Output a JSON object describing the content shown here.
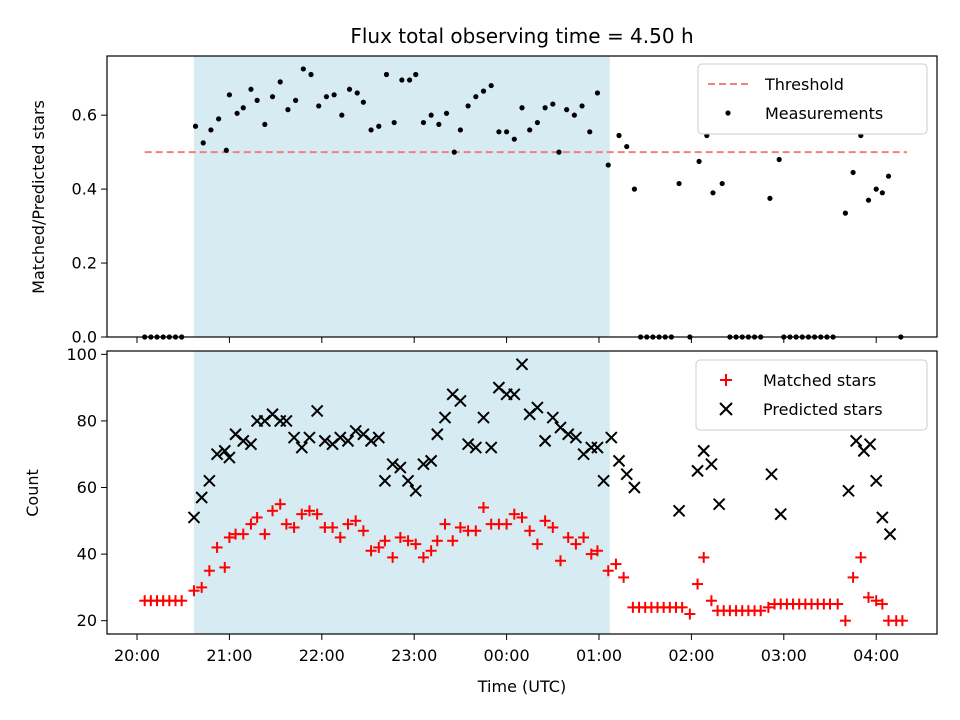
{
  "chart_data": {
    "type": "scatter",
    "title": "Flux total observing time = 4.50 h",
    "xlabel": "Time (UTC)",
    "x_ticks": [
      "20:00",
      "21:00",
      "22:00",
      "23:00",
      "00:00",
      "01:00",
      "02:00",
      "03:00",
      "04:00"
    ],
    "shaded_interval": {
      "start": "20:37",
      "end": "01:07",
      "color": "#add8e6"
    },
    "top_panel": {
      "ylabel": "Matched/Predicted stars",
      "ylim": [
        0,
        0.76
      ],
      "y_ticks": [
        "0.0",
        "0.2",
        "0.4",
        "0.6"
      ],
      "threshold": {
        "name": "Threshold",
        "value": 0.5,
        "color": "#f08080",
        "x_start": "20:05",
        "x_end": "04:20"
      },
      "measurements_name": "Measurements",
      "measurements": [
        [
          "20:05",
          0
        ],
        [
          "20:09",
          0
        ],
        [
          "20:13",
          0
        ],
        [
          "20:17",
          0
        ],
        [
          "20:21",
          0
        ],
        [
          "20:25",
          0
        ],
        [
          "20:29",
          0
        ],
        [
          "20:38",
          0.57
        ],
        [
          "20:43",
          0.525
        ],
        [
          "20:48",
          0.56
        ],
        [
          "20:53",
          0.59
        ],
        [
          "20:58",
          0.505
        ],
        [
          "21:00",
          0.655
        ],
        [
          "21:05",
          0.605
        ],
        [
          "21:09",
          0.62
        ],
        [
          "21:14",
          0.67
        ],
        [
          "21:18",
          0.64
        ],
        [
          "21:23",
          0.575
        ],
        [
          "21:28",
          0.65
        ],
        [
          "21:33",
          0.69
        ],
        [
          "21:38",
          0.615
        ],
        [
          "21:43",
          0.64
        ],
        [
          "21:48",
          0.725
        ],
        [
          "21:53",
          0.71
        ],
        [
          "21:58",
          0.625
        ],
        [
          "22:03",
          0.65
        ],
        [
          "22:08",
          0.655
        ],
        [
          "22:13",
          0.6
        ],
        [
          "22:18",
          0.67
        ],
        [
          "22:23",
          0.66
        ],
        [
          "22:27",
          0.635
        ],
        [
          "22:32",
          0.56
        ],
        [
          "22:37",
          0.57
        ],
        [
          "22:42",
          0.71
        ],
        [
          "22:47",
          0.58
        ],
        [
          "22:52",
          0.695
        ],
        [
          "22:57",
          0.695
        ],
        [
          "23:01",
          0.71
        ],
        [
          "23:06",
          0.58
        ],
        [
          "23:11",
          0.6
        ],
        [
          "23:16",
          0.575
        ],
        [
          "23:21",
          0.605
        ],
        [
          "23:26",
          0.5
        ],
        [
          "23:30",
          0.56
        ],
        [
          "23:35",
          0.625
        ],
        [
          "23:40",
          0.65
        ],
        [
          "23:45",
          0.665
        ],
        [
          "23:50",
          0.68
        ],
        [
          "23:55",
          0.555
        ],
        [
          "00:00",
          0.555
        ],
        [
          "00:05",
          0.535
        ],
        [
          "00:10",
          0.62
        ],
        [
          "00:15",
          0.56
        ],
        [
          "00:20",
          0.58
        ],
        [
          "00:25",
          0.62
        ],
        [
          "00:30",
          0.63
        ],
        [
          "00:34",
          0.5
        ],
        [
          "00:39",
          0.615
        ],
        [
          "00:44",
          0.6
        ],
        [
          "00:49",
          0.625
        ],
        [
          "00:54",
          0.555
        ],
        [
          "00:59",
          0.66
        ],
        [
          "01:06",
          0.465
        ],
        [
          "01:13",
          0.545
        ],
        [
          "01:18",
          0.515
        ],
        [
          "01:23",
          0.4
        ],
        [
          "01:27",
          0
        ],
        [
          "01:31",
          0
        ],
        [
          "01:35",
          0
        ],
        [
          "01:39",
          0
        ],
        [
          "01:43",
          0
        ],
        [
          "01:47",
          0
        ],
        [
          "01:52",
          0.415
        ],
        [
          "01:59",
          0
        ],
        [
          "02:05",
          0.475
        ],
        [
          "02:10",
          0.545
        ],
        [
          "02:14",
          0.39
        ],
        [
          "02:20",
          0.415
        ],
        [
          "02:25",
          0
        ],
        [
          "02:29",
          0
        ],
        [
          "02:33",
          0
        ],
        [
          "02:37",
          0
        ],
        [
          "02:41",
          0
        ],
        [
          "02:45",
          0
        ],
        [
          "02:51",
          0.375
        ],
        [
          "02:57",
          0.48
        ],
        [
          "03:00",
          0
        ],
        [
          "03:04",
          0
        ],
        [
          "03:08",
          0
        ],
        [
          "03:12",
          0
        ],
        [
          "03:16",
          0
        ],
        [
          "03:20",
          0
        ],
        [
          "03:24",
          0
        ],
        [
          "03:28",
          0
        ],
        [
          "03:32",
          0
        ],
        [
          "03:40",
          0.335
        ],
        [
          "03:45",
          0.445
        ],
        [
          "03:50",
          0.545
        ],
        [
          "03:55",
          0.37
        ],
        [
          "04:00",
          0.4
        ],
        [
          "04:04",
          0.39
        ],
        [
          "04:08",
          0.435
        ],
        [
          "04:16",
          0
        ]
      ]
    },
    "bottom_panel": {
      "ylabel": "Count",
      "ylim": [
        16,
        101
      ],
      "y_ticks": [
        "20",
        "40",
        "60",
        "80",
        "100"
      ],
      "series": [
        {
          "name": "Matched stars",
          "marker": "plus",
          "color": "#ff0000",
          "points": [
            [
              "20:05",
              26
            ],
            [
              "20:09",
              26
            ],
            [
              "20:13",
              26
            ],
            [
              "20:17",
              26
            ],
            [
              "20:21",
              26
            ],
            [
              "20:25",
              26
            ],
            [
              "20:29",
              26
            ],
            [
              "20:37",
              29
            ],
            [
              "20:42",
              30
            ],
            [
              "20:47",
              35
            ],
            [
              "20:52",
              42
            ],
            [
              "20:57",
              36
            ],
            [
              "21:00",
              45
            ],
            [
              "21:04",
              46
            ],
            [
              "21:09",
              46
            ],
            [
              "21:14",
              49
            ],
            [
              "21:18",
              51
            ],
            [
              "21:23",
              46
            ],
            [
              "21:28",
              53
            ],
            [
              "21:33",
              55
            ],
            [
              "21:37",
              49
            ],
            [
              "21:42",
              48
            ],
            [
              "21:47",
              52
            ],
            [
              "21:52",
              53
            ],
            [
              "21:57",
              52
            ],
            [
              "22:02",
              48
            ],
            [
              "22:07",
              48
            ],
            [
              "22:12",
              45
            ],
            [
              "22:17",
              49
            ],
            [
              "22:22",
              50
            ],
            [
              "22:27",
              47
            ],
            [
              "22:32",
              41
            ],
            [
              "22:37",
              42
            ],
            [
              "22:41",
              44
            ],
            [
              "22:46",
              39
            ],
            [
              "22:51",
              45
            ],
            [
              "22:56",
              44
            ],
            [
              "23:01",
              43
            ],
            [
              "23:06",
              39
            ],
            [
              "23:11",
              41
            ],
            [
              "23:15",
              44
            ],
            [
              "23:20",
              49
            ],
            [
              "23:25",
              44
            ],
            [
              "23:30",
              48
            ],
            [
              "23:35",
              47
            ],
            [
              "23:40",
              47
            ],
            [
              "23:45",
              54
            ],
            [
              "23:50",
              49
            ],
            [
              "23:55",
              49
            ],
            [
              "00:00",
              49
            ],
            [
              "00:05",
              52
            ],
            [
              "00:10",
              51
            ],
            [
              "00:15",
              47
            ],
            [
              "00:20",
              43
            ],
            [
              "00:25",
              50
            ],
            [
              "00:30",
              48
            ],
            [
              "00:35",
              38
            ],
            [
              "00:40",
              45
            ],
            [
              "00:45",
              43
            ],
            [
              "00:50",
              45
            ],
            [
              "00:55",
              40
            ],
            [
              "00:59",
              41
            ],
            [
              "01:06",
              35
            ],
            [
              "01:11",
              37
            ],
            [
              "01:16",
              33
            ],
            [
              "01:22",
              24
            ],
            [
              "01:26",
              24
            ],
            [
              "01:30",
              24
            ],
            [
              "01:34",
              24
            ],
            [
              "01:38",
              24
            ],
            [
              "01:42",
              24
            ],
            [
              "01:46",
              24
            ],
            [
              "01:50",
              24
            ],
            [
              "01:54",
              24
            ],
            [
              "01:59",
              22
            ],
            [
              "02:04",
              31
            ],
            [
              "02:08",
              39
            ],
            [
              "02:13",
              26
            ],
            [
              "02:17",
              23
            ],
            [
              "02:21",
              23
            ],
            [
              "02:25",
              23
            ],
            [
              "02:29",
              23
            ],
            [
              "02:33",
              23
            ],
            [
              "02:37",
              23
            ],
            [
              "02:41",
              23
            ],
            [
              "02:45",
              23
            ],
            [
              "02:50",
              24
            ],
            [
              "02:54",
              25
            ],
            [
              "02:58",
              25
            ],
            [
              "03:02",
              25
            ],
            [
              "03:06",
              25
            ],
            [
              "03:10",
              25
            ],
            [
              "03:14",
              25
            ],
            [
              "03:18",
              25
            ],
            [
              "03:22",
              25
            ],
            [
              "03:26",
              25
            ],
            [
              "03:30",
              25
            ],
            [
              "03:35",
              25
            ],
            [
              "03:40",
              20
            ],
            [
              "03:45",
              33
            ],
            [
              "03:50",
              39
            ],
            [
              "03:55",
              27
            ],
            [
              "04:00",
              26
            ],
            [
              "04:04",
              25
            ],
            [
              "04:08",
              20
            ],
            [
              "04:13",
              20
            ],
            [
              "04:17",
              20
            ]
          ]
        },
        {
          "name": "Predicted stars",
          "marker": "x",
          "color": "#000000",
          "points": [
            [
              "20:37",
              51
            ],
            [
              "20:42",
              57
            ],
            [
              "20:47",
              62
            ],
            [
              "20:52",
              70
            ],
            [
              "20:57",
              71
            ],
            [
              "21:00",
              69
            ],
            [
              "21:04",
              76
            ],
            [
              "21:09",
              74
            ],
            [
              "21:14",
              73
            ],
            [
              "21:18",
              80
            ],
            [
              "21:23",
              80
            ],
            [
              "21:28",
              82
            ],
            [
              "21:33",
              80
            ],
            [
              "21:37",
              80
            ],
            [
              "21:42",
              75
            ],
            [
              "21:47",
              72
            ],
            [
              "21:52",
              75
            ],
            [
              "21:57",
              83
            ],
            [
              "22:02",
              74
            ],
            [
              "22:07",
              73
            ],
            [
              "22:12",
              75
            ],
            [
              "22:17",
              74
            ],
            [
              "22:22",
              77
            ],
            [
              "22:27",
              76
            ],
            [
              "22:32",
              74
            ],
            [
              "22:37",
              75
            ],
            [
              "22:41",
              62
            ],
            [
              "22:46",
              67
            ],
            [
              "22:51",
              66
            ],
            [
              "22:56",
              62
            ],
            [
              "23:01",
              59
            ],
            [
              "23:06",
              67
            ],
            [
              "23:11",
              68
            ],
            [
              "23:15",
              76
            ],
            [
              "23:20",
              81
            ],
            [
              "23:25",
              88
            ],
            [
              "23:30",
              86
            ],
            [
              "23:35",
              73
            ],
            [
              "23:40",
              72
            ],
            [
              "23:45",
              81
            ],
            [
              "23:50",
              72
            ],
            [
              "23:55",
              90
            ],
            [
              "00:00",
              88
            ],
            [
              "00:05",
              88
            ],
            [
              "00:10",
              97
            ],
            [
              "00:15",
              82
            ],
            [
              "00:20",
              84
            ],
            [
              "00:25",
              74
            ],
            [
              "00:30",
              81
            ],
            [
              "00:35",
              78
            ],
            [
              "00:40",
              76
            ],
            [
              "00:45",
              75
            ],
            [
              "00:50",
              70
            ],
            [
              "00:55",
              72
            ],
            [
              "00:59",
              72
            ],
            [
              "01:03",
              62
            ],
            [
              "01:08",
              75
            ],
            [
              "01:13",
              68
            ],
            [
              "01:18",
              64
            ],
            [
              "01:23",
              60
            ],
            [
              "01:52",
              53
            ],
            [
              "02:04",
              65
            ],
            [
              "02:08",
              71
            ],
            [
              "02:13",
              67
            ],
            [
              "02:18",
              55
            ],
            [
              "02:52",
              64
            ],
            [
              "02:58",
              52
            ],
            [
              "03:42",
              59
            ],
            [
              "03:47",
              74
            ],
            [
              "03:52",
              71
            ],
            [
              "03:56",
              73
            ],
            [
              "04:00",
              62
            ],
            [
              "04:04",
              51
            ],
            [
              "04:09",
              46
            ]
          ]
        }
      ]
    },
    "legend_placement": "top-right"
  }
}
